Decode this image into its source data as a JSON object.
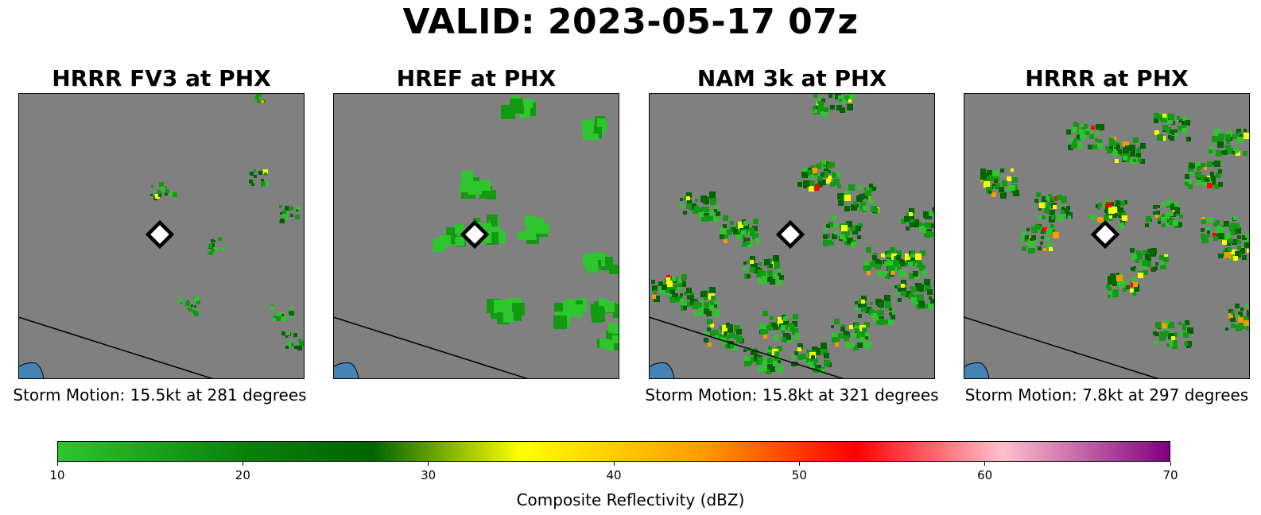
{
  "figure": {
    "title": "VALID: 2023-05-17 07z"
  },
  "panels": [
    {
      "title": "HRRR FV3 at PHX",
      "storm_motion": "Storm Motion: 15.5kt at 281 degrees",
      "echo_coverage": "sparse"
    },
    {
      "title": "HREF at PHX",
      "storm_motion": "",
      "echo_coverage": "sparse-blocky"
    },
    {
      "title": "NAM 3k at PHX",
      "storm_motion": "Storm Motion: 15.8kt at 321 degrees",
      "echo_coverage": "widespread"
    },
    {
      "title": "HRRR at PHX",
      "storm_motion": "Storm Motion: 7.8kt at 297 degrees",
      "echo_coverage": "scattered"
    }
  ],
  "colorbar": {
    "label": "Composite Reflectivity (dBZ)",
    "min": 10,
    "max": 70,
    "ticks": [
      "10",
      "20",
      "30",
      "40",
      "50",
      "60",
      "70"
    ],
    "stops": [
      {
        "value": 10,
        "color": "#2ec52e"
      },
      {
        "value": 20,
        "color": "#0b820b"
      },
      {
        "value": 27,
        "color": "#006400"
      },
      {
        "value": 35,
        "color": "#ffff00"
      },
      {
        "value": 45,
        "color": "#ff9900"
      },
      {
        "value": 53,
        "color": "#ff0000"
      },
      {
        "value": 61,
        "color": "#ffc0cb"
      },
      {
        "value": 70,
        "color": "#800080"
      }
    ]
  },
  "map_style": {
    "background": "#808080",
    "water": "#4682b4",
    "border": "#000000",
    "station_marker": "diamond"
  }
}
